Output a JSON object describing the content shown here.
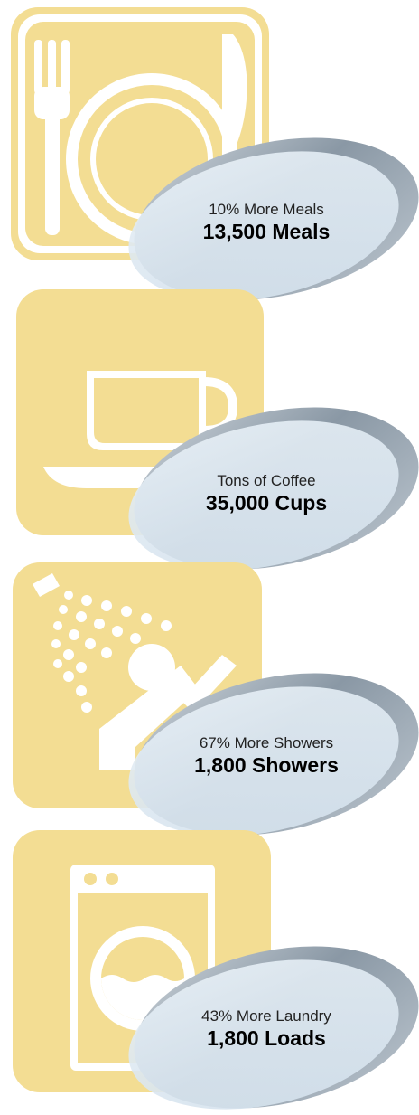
{
  "colors": {
    "icon_fill": "#f3dd93",
    "icon_shape": "#ffffff",
    "bubble_fill": "#dde9f3",
    "bubble_ring_dark": "#8795a2",
    "bubble_ring_light": "#c6ced6"
  },
  "items": [
    {
      "icon": "meal-plate-icon",
      "subtitle": "10% More Meals",
      "headline": "13,500 Meals"
    },
    {
      "icon": "coffee-cup-icon",
      "subtitle": "Tons of Coffee",
      "headline": "35,000 Cups"
    },
    {
      "icon": "shower-icon",
      "subtitle": "67% More Showers",
      "headline": "1,800 Showers"
    },
    {
      "icon": "washing-machine-icon",
      "subtitle": "43% More Laundry",
      "headline": "1,800 Loads"
    }
  ]
}
